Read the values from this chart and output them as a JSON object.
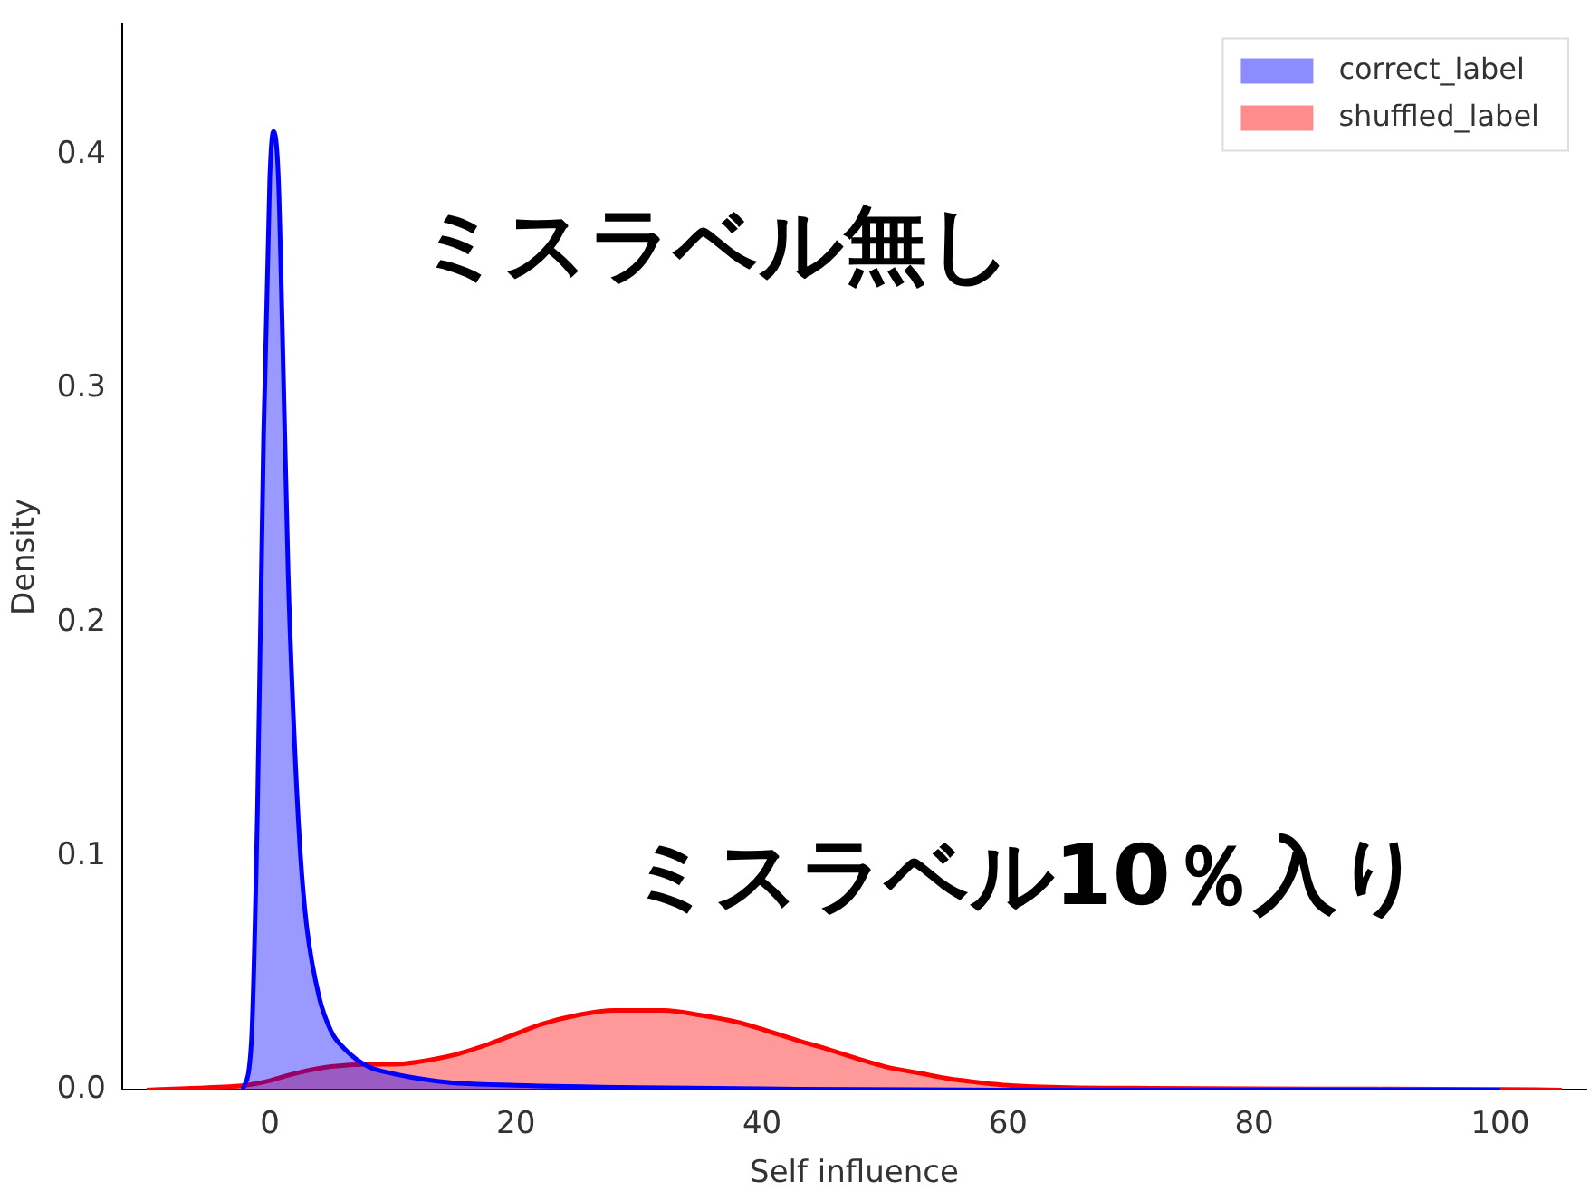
{
  "chart_data": {
    "type": "area",
    "xlabel": "Self influence",
    "ylabel": "Density",
    "xlim": [
      -12,
      107
    ],
    "ylim": [
      0,
      0.456
    ],
    "xticks": [
      0,
      20,
      40,
      60,
      80,
      100
    ],
    "yticks": [
      {
        "value": 0,
        "label": "0.0"
      },
      {
        "value": 0.1,
        "label": "0.1"
      },
      {
        "value": 0.2,
        "label": "0.2"
      },
      {
        "value": 0.3,
        "label": "0.3"
      },
      {
        "value": 0.4,
        "label": "0.4"
      }
    ],
    "grid": false,
    "legend": "top right",
    "series": [
      {
        "name": "correct_label",
        "color": "#0000ff",
        "x": [
          -2.2,
          -1.5,
          -1,
          -0.5,
          0,
          0.3,
          0.7,
          1,
          1.5,
          2,
          2.5,
          3,
          4,
          5,
          6,
          8,
          10,
          12,
          15,
          20,
          30,
          40,
          60,
          100
        ],
        "values": [
          0,
          0.02,
          0.12,
          0.28,
          0.39,
          0.41,
          0.39,
          0.33,
          0.22,
          0.15,
          0.1,
          0.07,
          0.04,
          0.025,
          0.018,
          0.01,
          0.007,
          0.005,
          0.003,
          0.002,
          0.001,
          0.0005,
          0,
          0
        ]
      },
      {
        "name": "shuffled_label",
        "color": "#ff0000",
        "x": [
          -10,
          -5,
          -2,
          0,
          2,
          5,
          8,
          10,
          12,
          15,
          18,
          20,
          22,
          25,
          28,
          30,
          32,
          35,
          38,
          40,
          43,
          45,
          48,
          50,
          53,
          55,
          58,
          60,
          65,
          70,
          80,
          90,
          100,
          105
        ],
        "values": [
          0,
          0.001,
          0.002,
          0.004,
          0.007,
          0.01,
          0.011,
          0.011,
          0.012,
          0.015,
          0.02,
          0.024,
          0.028,
          0.032,
          0.034,
          0.034,
          0.034,
          0.032,
          0.029,
          0.026,
          0.021,
          0.018,
          0.013,
          0.01,
          0.007,
          0.005,
          0.003,
          0.002,
          0.001,
          0.0008,
          0.0005,
          0.0004,
          0.0003,
          0
        ]
      }
    ],
    "annotations": [
      "ミスラベル無し",
      "ミスラベル10％入り"
    ]
  }
}
